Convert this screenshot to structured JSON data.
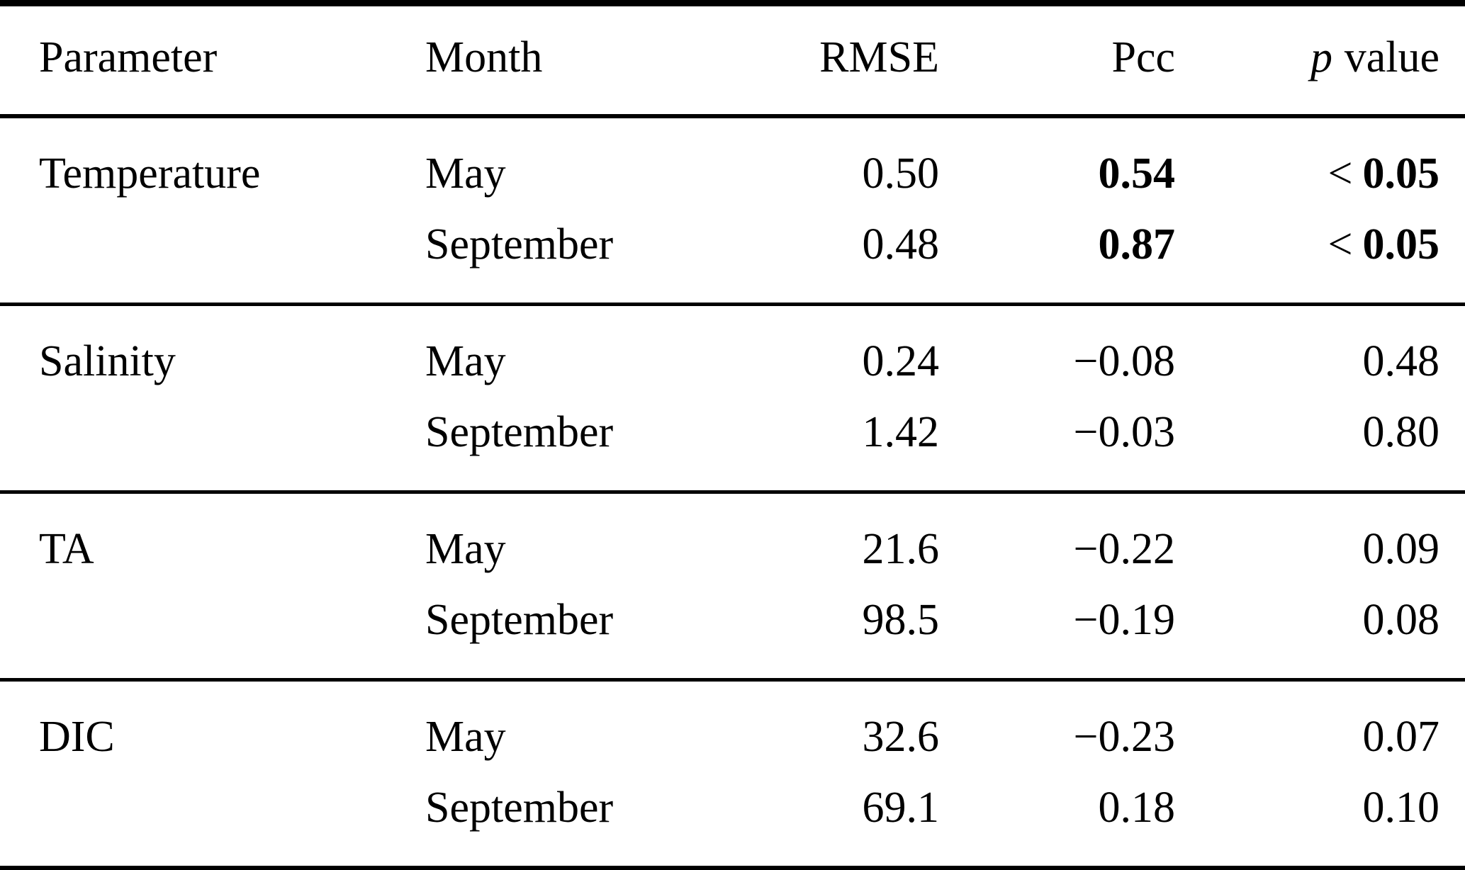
{
  "colors": {
    "text": "#000000",
    "background": "#ffffff",
    "rule": "#000000"
  },
  "table": {
    "headers": {
      "parameter": "Parameter",
      "month": "Month",
      "rmse": "RMSE",
      "pcc": "Pcc",
      "p_italic": "p",
      "p_rest": "value"
    },
    "sections": [
      {
        "parameter": "Temperature",
        "rows": [
          {
            "month": "May",
            "rmse": "0.50",
            "pcc": "0.54",
            "pcc_style": "bold",
            "p_prefix": "<",
            "p_value": "0.05",
            "p_style": "bold"
          },
          {
            "month": "September",
            "rmse": "0.48",
            "pcc": "0.87",
            "pcc_style": "bold",
            "p_prefix": "<",
            "p_value": "0.05",
            "p_style": "bold"
          }
        ]
      },
      {
        "parameter": "Salinity",
        "rows": [
          {
            "month": "May",
            "rmse": "0.24",
            "pcc": "−0.08",
            "pcc_style": "reg",
            "p_prefix": "",
            "p_value": "0.48",
            "p_style": "reg"
          },
          {
            "month": "September",
            "rmse": "1.42",
            "pcc": "−0.03",
            "pcc_style": "reg",
            "p_prefix": "",
            "p_value": "0.80",
            "p_style": "reg"
          }
        ]
      },
      {
        "parameter": "TA",
        "rows": [
          {
            "month": "May",
            "rmse": "21.6",
            "pcc": "−0.22",
            "pcc_style": "reg",
            "p_prefix": "",
            "p_value": "0.09",
            "p_style": "reg"
          },
          {
            "month": "September",
            "rmse": "98.5",
            "pcc": "−0.19",
            "pcc_style": "reg",
            "p_prefix": "",
            "p_value": "0.08",
            "p_style": "reg"
          }
        ]
      },
      {
        "parameter": "DIC",
        "rows": [
          {
            "month": "May",
            "rmse": "32.6",
            "pcc": "−0.23",
            "pcc_style": "reg",
            "p_prefix": "",
            "p_value": "0.07",
            "p_style": "reg"
          },
          {
            "month": "September",
            "rmse": "69.1",
            "pcc": "0.18",
            "pcc_style": "reg",
            "p_prefix": "",
            "p_value": "0.10",
            "p_style": "reg"
          }
        ]
      }
    ]
  },
  "chart_data": {
    "type": "table",
    "title": "",
    "columns": [
      "Parameter",
      "Month",
      "RMSE",
      "Pcc",
      "p value"
    ],
    "rows": [
      [
        "Temperature",
        "May",
        0.5,
        0.54,
        "< 0.05"
      ],
      [
        "Temperature",
        "September",
        0.48,
        0.87,
        "< 0.05"
      ],
      [
        "Salinity",
        "May",
        0.24,
        -0.08,
        0.48
      ],
      [
        "Salinity",
        "September",
        1.42,
        -0.03,
        0.8
      ],
      [
        "TA",
        "May",
        21.6,
        -0.22,
        0.09
      ],
      [
        "TA",
        "September",
        98.5,
        -0.19,
        0.08
      ],
      [
        "DIC",
        "May",
        32.6,
        -0.23,
        0.07
      ],
      [
        "DIC",
        "September",
        69.1,
        0.18,
        0.1
      ]
    ],
    "bold_cells_note": "Pcc and p value are bold for both Temperature rows"
  }
}
